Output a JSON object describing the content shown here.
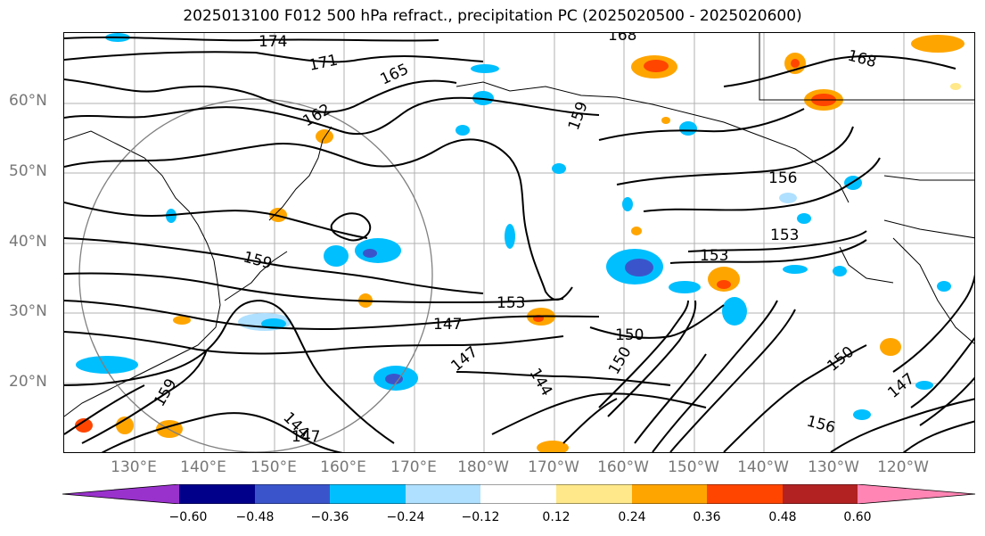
{
  "title": "2025013100 F012 500 hPa refract., precipitation PC (2025020500 - 2025020600)",
  "lat_labels": [
    "60°N",
    "50°N",
    "40°N",
    "30°N",
    "20°N"
  ],
  "lon_labels": [
    "130°E",
    "140°E",
    "150°E",
    "160°E",
    "170°E",
    "180°W",
    "170°W",
    "160°W",
    "150°W",
    "140°W",
    "130°W",
    "120°W"
  ],
  "contour_labels": [
    "174",
    "171",
    "168",
    "165",
    "162",
    "159",
    "156",
    "153",
    "150",
    "147",
    "144",
    "168",
    "159",
    "156",
    "153",
    "153",
    "150",
    "147",
    "147",
    "144",
    "159",
    "150",
    "147",
    "156"
  ],
  "colorbar": {
    "ticks": [
      "−0.60",
      "−0.48",
      "−0.36",
      "−0.24",
      "−0.12",
      "0.12",
      "0.24",
      "0.36",
      "0.48",
      "0.60"
    ],
    "colors": [
      "#9932cc",
      "#00008b",
      "#3a55cc",
      "#00bfff",
      "#afe0ff",
      "#ffffff",
      "#ffe88a",
      "#ffa500",
      "#ff4500",
      "#b22222",
      "#ff85b4"
    ]
  }
}
